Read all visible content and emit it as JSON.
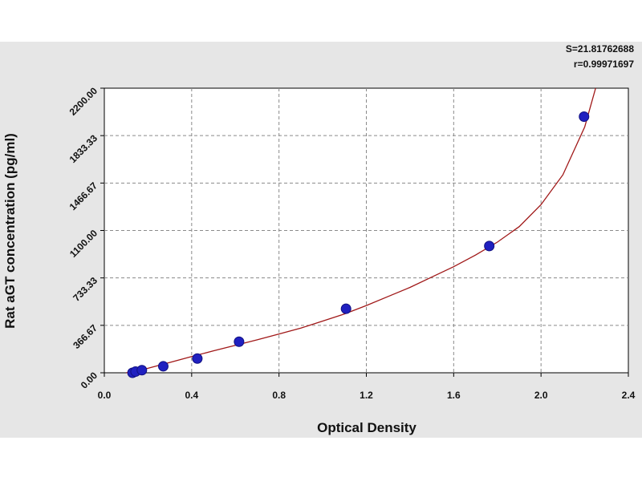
{
  "chart_data": {
    "type": "scatter",
    "title": "",
    "xlabel": "Optical Density",
    "ylabel": "Rat aGT concentration (pg/ml)",
    "xlim": [
      0.0,
      2.4
    ],
    "ylim": [
      0.0,
      2200.0
    ],
    "x_ticks": [
      "0.0",
      "0.4",
      "0.8",
      "1.2",
      "1.6",
      "2.0",
      "2.4"
    ],
    "y_ticks": [
      "0.00",
      "366.67",
      "733.33",
      "1100.00",
      "1466.67",
      "1833.33",
      "2200.00"
    ],
    "grid": true,
    "stats": {
      "s": "S=21.81762688",
      "r": "r=0.99971697"
    },
    "series": [
      {
        "values": [
          {
            "x": 0.129,
            "y": 0
          },
          {
            "x": 0.143,
            "y": 9
          },
          {
            "x": 0.172,
            "y": 20
          },
          {
            "x": 0.27,
            "y": 50
          },
          {
            "x": 0.426,
            "y": 110
          },
          {
            "x": 0.617,
            "y": 240
          },
          {
            "x": 1.107,
            "y": 495
          },
          {
            "x": 1.763,
            "y": 980
          },
          {
            "x": 2.197,
            "y": 1980
          }
        ]
      }
    ],
    "curve": [
      [
        0.1,
        0
      ],
      [
        0.2,
        35
      ],
      [
        0.3,
        80
      ],
      [
        0.4,
        125
      ],
      [
        0.5,
        170
      ],
      [
        0.6,
        212
      ],
      [
        0.7,
        255
      ],
      [
        0.8,
        300
      ],
      [
        0.9,
        345
      ],
      [
        1.0,
        400
      ],
      [
        1.1,
        455
      ],
      [
        1.2,
        520
      ],
      [
        1.3,
        590
      ],
      [
        1.4,
        660
      ],
      [
        1.5,
        740
      ],
      [
        1.6,
        820
      ],
      [
        1.7,
        910
      ],
      [
        1.8,
        1010
      ],
      [
        1.9,
        1130
      ],
      [
        2.0,
        1300
      ],
      [
        2.1,
        1530
      ],
      [
        2.2,
        1900
      ],
      [
        2.25,
        2200
      ]
    ],
    "colors": {
      "points": "#2020c0",
      "curve": "#a01818",
      "grid": "#8a8a8a",
      "plot_bg": "#ffffff",
      "panel_bg": "#e6e6e6"
    }
  }
}
